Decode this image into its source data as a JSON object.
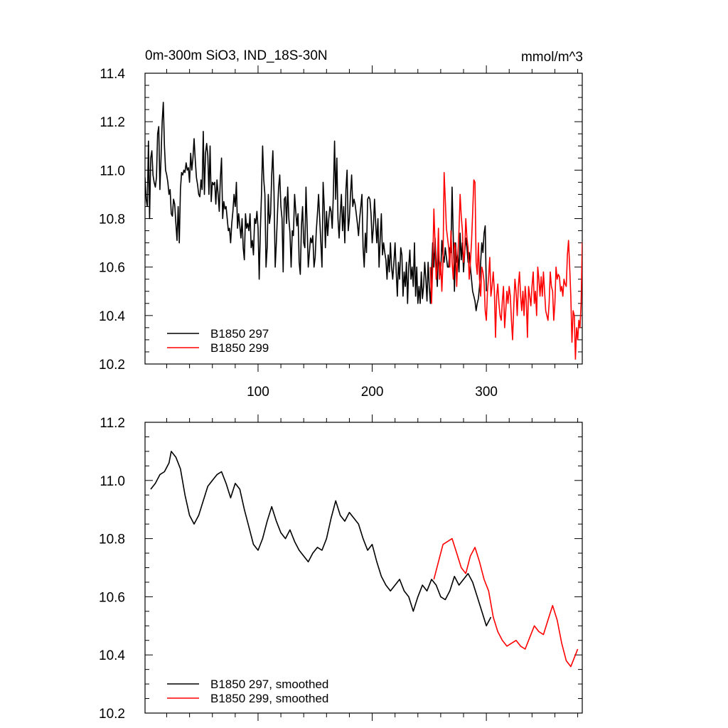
{
  "title": "0m-300m SiO3, IND_18S-30N",
  "units": "mmol/m^3",
  "chart_data": [
    {
      "type": "line",
      "title": "0m-300m SiO3, IND_18S-30N",
      "units": "mmol/m^3",
      "xlim": [
        1,
        384
      ],
      "ylim": [
        10.2,
        11.4
      ],
      "xticks": [
        100,
        200,
        300
      ],
      "yticks": [
        10.2,
        10.4,
        10.6,
        10.8,
        11.0,
        11.2,
        11.4
      ],
      "ytick_labels": [
        "10.2",
        "10.4",
        "10.6",
        "10.8",
        "11.0",
        "11.2",
        "11.4"
      ],
      "xtick_labels": [
        "100",
        "200",
        "300"
      ],
      "legend_position": "bottom-left",
      "series": [
        {
          "name": "B1850 297",
          "color": "#000000",
          "x_start": 1,
          "values": [
            10.97,
            10.88,
            10.85,
            11.12,
            10.8,
            11.05,
            11.08,
            10.98,
            10.95,
            10.93,
            10.97,
            11.15,
            11.18,
            10.92,
            11.05,
            11.2,
            11.28,
            11.1,
            11.0,
            10.98,
            10.95,
            10.9,
            10.92,
            10.82,
            10.81,
            10.88,
            10.86,
            10.78,
            10.71,
            10.85,
            10.7,
            10.92,
            10.99,
            10.98,
            11.0,
            10.99,
            11.03,
            11.0,
            11.01,
            10.95,
            11.07,
            11.0,
            11.05,
            11.13,
            11.04,
            10.97,
            10.94,
            10.9,
            10.89,
            10.96,
            10.92,
            11.16,
            10.9,
            11.07,
            11.11,
            11.06,
            10.9,
            11.1,
            10.87,
            10.95,
            10.94,
            10.95,
            10.86,
            10.96,
            10.9,
            10.83,
            10.97,
            11.05,
            10.8,
            10.87,
            10.84,
            10.85,
            10.8,
            10.75,
            10.76,
            10.7,
            10.78,
            10.83,
            10.9,
            10.85,
            10.95,
            10.76,
            10.82,
            10.77,
            10.72,
            10.8,
            10.68,
            10.63,
            10.82,
            10.76,
            10.78,
            10.75,
            10.82,
            10.68,
            10.71,
            10.65,
            10.8,
            10.78,
            10.83,
            10.76,
            10.55,
            10.75,
            10.9,
            11.1,
            10.96,
            10.9,
            10.6,
            10.68,
            10.9,
            10.78,
            10.82,
            10.98,
            11.08,
            10.91,
            10.6,
            10.7,
            10.82,
            10.93,
            10.98,
            10.85,
            10.8,
            10.58,
            10.88,
            10.89,
            10.78,
            10.93,
            10.8,
            10.74,
            10.6,
            10.75,
            10.73,
            10.9,
            10.83,
            10.77,
            10.82,
            10.62,
            10.57,
            10.77,
            10.85,
            10.7,
            10.68,
            10.93,
            10.77,
            10.6,
            10.66,
            10.72,
            10.7,
            10.73,
            10.6,
            10.64,
            10.75,
            10.82,
            10.9,
            10.8,
            10.7,
            10.6,
            10.95,
            10.85,
            10.68,
            10.83,
            10.73,
            10.8,
            10.85,
            10.83,
            10.76,
            10.9,
            11.12,
            10.88,
            11.05,
            10.8,
            10.72,
            10.82,
            10.9,
            10.75,
            10.85,
            10.7,
            10.92,
            11.0,
            10.75,
            10.8,
            10.9,
            10.98,
            10.85,
            10.88,
            10.86,
            10.82,
            10.78,
            10.73,
            10.8,
            10.85,
            10.9,
            10.68,
            10.6,
            10.74,
            10.66,
            10.88,
            10.89,
            10.88,
            10.82,
            10.7,
            10.76,
            10.88,
            10.78,
            10.7,
            10.8,
            10.6,
            10.72,
            10.82,
            10.65,
            10.7,
            10.66,
            10.63,
            10.55,
            10.65,
            10.58,
            10.7,
            10.6,
            10.55,
            10.62,
            10.7,
            10.58,
            10.48,
            10.62,
            10.55,
            10.68,
            10.65,
            10.48,
            10.58,
            10.52,
            10.62,
            10.45,
            10.6,
            10.67,
            10.55,
            10.6,
            10.52,
            10.7,
            10.48,
            10.6,
            10.45,
            10.52,
            10.45,
            10.58,
            10.47,
            10.52,
            10.62,
            10.55,
            10.46,
            10.62,
            10.52,
            10.45,
            10.58,
            10.7,
            10.6,
            10.72,
            10.62,
            10.52,
            10.67,
            10.61,
            10.57,
            10.71,
            10.65,
            10.62,
            10.68,
            10.64,
            10.6,
            10.6,
            10.68,
            10.66,
            10.93,
            10.72,
            10.5,
            10.7,
            10.62,
            10.65,
            10.58,
            10.74,
            10.63,
            10.7,
            10.58,
            10.66,
            10.72,
            10.68,
            10.62,
            10.66,
            10.6,
            10.55,
            10.5,
            10.48,
            10.46,
            10.42,
            10.45,
            10.47,
            10.52,
            10.62,
            10.7,
            10.66,
            10.74,
            10.77,
            10.5
          ]
        },
        {
          "name": "B1850 299",
          "color": "#ff0000",
          "x_start": 251,
          "values": [
            10.6,
            10.45,
            10.6,
            10.84,
            10.7,
            10.55,
            10.6,
            10.76,
            10.55,
            10.62,
            10.5,
            10.62,
            10.99,
            10.88,
            10.76,
            10.72,
            10.68,
            10.6,
            10.75,
            10.62,
            10.55,
            10.7,
            10.68,
            10.52,
            10.65,
            10.75,
            10.9,
            10.81,
            10.75,
            10.62,
            10.66,
            10.8,
            10.72,
            10.68,
            10.55,
            10.62,
            10.7,
            10.82,
            10.96,
            10.95,
            10.62,
            10.57,
            10.7,
            10.55,
            10.48,
            10.6,
            10.58,
            10.54,
            10.42,
            10.38,
            10.5,
            10.56,
            10.64,
            10.48,
            10.52,
            10.58,
            10.5,
            10.31,
            10.48,
            10.53,
            10.45,
            10.4,
            10.38,
            10.46,
            10.52,
            10.35,
            10.42,
            10.5,
            10.45,
            10.52,
            10.48,
            10.38,
            10.3,
            10.44,
            10.55,
            10.5,
            10.4,
            10.52,
            10.58,
            10.48,
            10.42,
            10.5,
            10.4,
            10.52,
            10.46,
            10.31,
            10.52,
            10.48,
            10.44,
            10.52,
            10.58,
            10.45,
            10.5,
            10.4,
            10.6,
            10.55,
            10.48,
            10.56,
            10.48,
            10.58,
            10.5,
            10.42,
            10.4,
            10.38,
            10.45,
            10.58,
            10.52,
            10.5,
            10.38,
            10.45,
            10.6,
            10.55,
            10.57,
            10.56,
            10.5,
            10.52,
            10.48,
            10.55,
            10.53,
            10.52,
            10.65,
            10.71,
            10.6,
            10.48,
            10.29,
            10.42,
            10.4,
            10.22,
            10.35,
            10.3,
            10.38,
            10.35,
            10.45,
            10.7,
            10.52,
            10.31
          ]
        }
      ]
    },
    {
      "type": "line",
      "title": "",
      "xlim": [
        1,
        384
      ],
      "ylim": [
        10.2,
        11.2
      ],
      "xticks": [
        100,
        200,
        300
      ],
      "yticks": [
        10.2,
        10.4,
        10.6,
        10.8,
        11.0,
        11.2
      ],
      "ytick_labels": [
        "10.2",
        "10.4",
        "10.6",
        "10.8",
        "11.0",
        "11.2"
      ],
      "legend_position": "bottom-left",
      "series": [
        {
          "name": "B1850 297, smoothed",
          "color": "#000000",
          "x": [
            6,
            10,
            14,
            18,
            22,
            24,
            28,
            32,
            36,
            40,
            44,
            48,
            52,
            56,
            60,
            64,
            68,
            72,
            76,
            80,
            84,
            88,
            92,
            96,
            100,
            104,
            108,
            112,
            116,
            120,
            124,
            128,
            132,
            136,
            140,
            144,
            148,
            152,
            156,
            160,
            164,
            168,
            172,
            176,
            180,
            184,
            188,
            192,
            196,
            200,
            204,
            208,
            212,
            216,
            220,
            224,
            228,
            232,
            236,
            240,
            244,
            248,
            252,
            256,
            260,
            264,
            268,
            272,
            276,
            280,
            284,
            288,
            292,
            296,
            300,
            304
          ],
          "values": [
            10.97,
            10.99,
            11.02,
            11.03,
            11.06,
            11.1,
            11.08,
            11.04,
            10.95,
            10.88,
            10.85,
            10.88,
            10.93,
            10.98,
            11.0,
            11.02,
            11.03,
            10.99,
            10.94,
            10.99,
            10.97,
            10.9,
            10.84,
            10.78,
            10.76,
            10.8,
            10.86,
            10.91,
            10.86,
            10.82,
            10.8,
            10.83,
            10.79,
            10.76,
            10.74,
            10.72,
            10.75,
            10.77,
            10.76,
            10.8,
            10.87,
            10.93,
            10.88,
            10.86,
            10.89,
            10.87,
            10.85,
            10.8,
            10.76,
            10.78,
            10.72,
            10.67,
            10.64,
            10.62,
            10.64,
            10.66,
            10.62,
            10.6,
            10.55,
            10.6,
            10.64,
            10.62,
            10.66,
            10.64,
            10.6,
            10.59,
            10.62,
            10.67,
            10.64,
            10.66,
            10.68,
            10.65,
            10.6,
            10.55,
            10.5,
            10.53
          ]
        },
        {
          "name": "B1850 299, smoothed",
          "color": "#ff0000",
          "x": [
            254,
            258,
            262,
            266,
            270,
            274,
            278,
            282,
            286,
            290,
            294,
            298,
            302,
            306,
            310,
            314,
            318,
            322,
            326,
            330,
            334,
            338,
            342,
            346,
            350,
            354,
            358,
            362,
            366,
            370,
            374,
            378,
            380
          ],
          "values": [
            10.66,
            10.72,
            10.78,
            10.79,
            10.8,
            10.75,
            10.7,
            10.68,
            10.74,
            10.77,
            10.72,
            10.66,
            10.62,
            10.53,
            10.48,
            10.45,
            10.43,
            10.44,
            10.45,
            10.43,
            10.42,
            10.46,
            10.5,
            10.48,
            10.47,
            10.52,
            10.57,
            10.52,
            10.44,
            10.38,
            10.36,
            10.4,
            10.42
          ]
        }
      ]
    }
  ]
}
